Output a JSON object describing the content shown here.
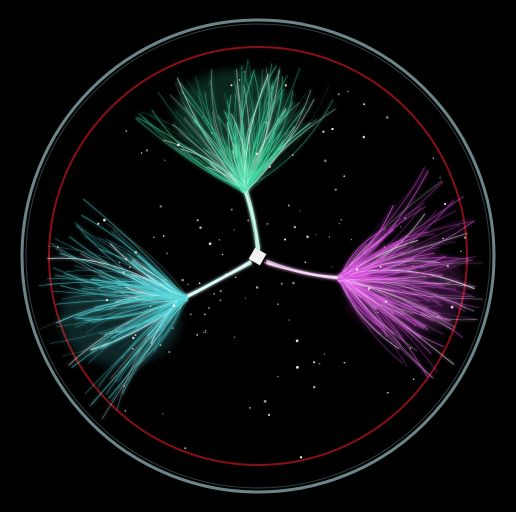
{
  "scene": {
    "subject": "glowing-filament-tree-in-circular-frame",
    "background_color": "#000000",
    "outer_ring_color": "#8fb3b8",
    "inner_ring_color": "#8a0f14",
    "center_node_color": "#f2f2f2",
    "branches": [
      {
        "name": "top",
        "color": "#3fd9a0",
        "highlight": "#c8fff0"
      },
      {
        "name": "right",
        "color": "#d94fe0",
        "highlight": "#ffd6ff"
      },
      {
        "name": "left",
        "color": "#4fd2d6",
        "highlight": "#e0ffff"
      }
    ],
    "sparkle_color": "#ffffff"
  }
}
